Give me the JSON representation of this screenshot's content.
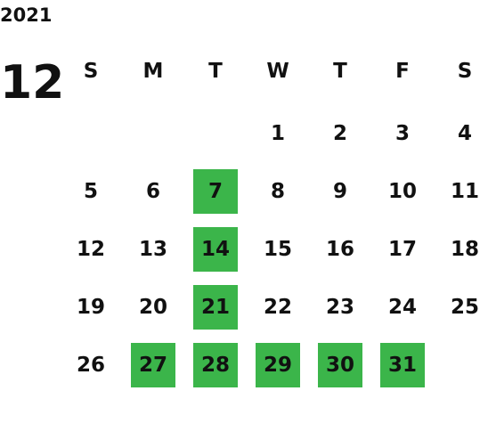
{
  "year": "2021",
  "month": "12",
  "weekdays": [
    "S",
    "M",
    "T",
    "W",
    "T",
    "F",
    "S"
  ],
  "weeks": [
    [
      null,
      null,
      null,
      {
        "day": 1,
        "highlighted": false
      },
      {
        "day": 2,
        "highlighted": false
      },
      {
        "day": 3,
        "highlighted": false
      },
      {
        "day": 4,
        "highlighted": false
      }
    ],
    [
      {
        "day": 5,
        "highlighted": false
      },
      {
        "day": 6,
        "highlighted": false
      },
      {
        "day": 7,
        "highlighted": true
      },
      {
        "day": 8,
        "highlighted": false
      },
      {
        "day": 9,
        "highlighted": false
      },
      {
        "day": 10,
        "highlighted": false
      },
      {
        "day": 11,
        "highlighted": false
      }
    ],
    [
      {
        "day": 12,
        "highlighted": false
      },
      {
        "day": 13,
        "highlighted": false
      },
      {
        "day": 14,
        "highlighted": true
      },
      {
        "day": 15,
        "highlighted": false
      },
      {
        "day": 16,
        "highlighted": false
      },
      {
        "day": 17,
        "highlighted": false
      },
      {
        "day": 18,
        "highlighted": false
      }
    ],
    [
      {
        "day": 19,
        "highlighted": false
      },
      {
        "day": 20,
        "highlighted": false
      },
      {
        "day": 21,
        "highlighted": true
      },
      {
        "day": 22,
        "highlighted": false
      },
      {
        "day": 23,
        "highlighted": false
      },
      {
        "day": 24,
        "highlighted": false
      },
      {
        "day": 25,
        "highlighted": false
      }
    ],
    [
      {
        "day": 26,
        "highlighted": false
      },
      {
        "day": 27,
        "highlighted": true
      },
      {
        "day": 28,
        "highlighted": true
      },
      {
        "day": 29,
        "highlighted": true
      },
      {
        "day": 30,
        "highlighted": true
      },
      {
        "day": 31,
        "highlighted": true
      },
      null
    ]
  ]
}
